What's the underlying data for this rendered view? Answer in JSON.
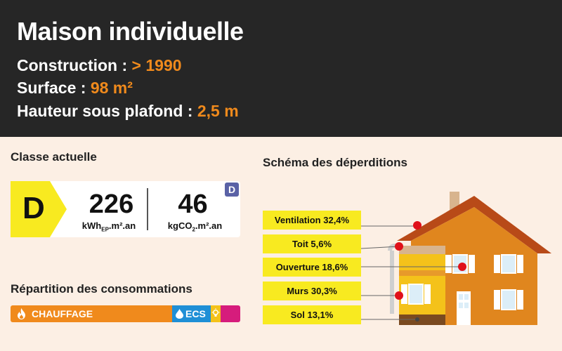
{
  "header": {
    "title": "Maison individuelle",
    "construction_label": "Construction : ",
    "construction_value": "> 1990",
    "surface_label": "Surface : ",
    "surface_value": "98 m²",
    "height_label": "Hauteur sous plafond : ",
    "height_value": "2,5 m"
  },
  "current_class": {
    "title": "Classe actuelle",
    "energy_class": "D",
    "energy_value": "226",
    "energy_unit_prefix": "kWh",
    "energy_unit_sub": "EP",
    "energy_unit_suffix": ".m².an",
    "ges_value": "46",
    "ges_unit_prefix": "kgCO",
    "ges_unit_sub": "2",
    "ges_unit_suffix": ".m².an",
    "ges_class": "D",
    "class_color": "#f8ea20",
    "ges_color": "#5a62a6"
  },
  "consumption": {
    "title": "Répartition des consommations",
    "heating_label": "CHAUFFAGE",
    "ecs_label": "ECS",
    "heating_color": "#f08a1c",
    "ecs_color": "#1f8fd6",
    "lighting_color": "#f4c21a",
    "other_color": "#d61c7c",
    "heating_icon": "flame-icon",
    "ecs_icon": "water-drop-icon",
    "lighting_icon": "lightbulb-icon"
  },
  "losses": {
    "title": "Schéma des déperditions",
    "items": [
      {
        "label": "Ventilation 32,4%"
      },
      {
        "label": "Toit 5,6%"
      },
      {
        "label": "Ouverture 18,6%"
      },
      {
        "label": "Murs 30,3%"
      },
      {
        "label": "Sol 13,1%"
      }
    ],
    "box_color": "#f8ea20",
    "marker_color": "#e0101a"
  }
}
